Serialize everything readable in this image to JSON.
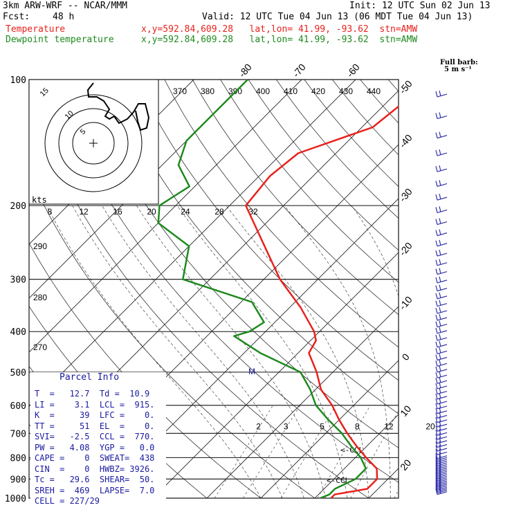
{
  "header": {
    "model": "3km ARW-WRF -- NCAR/MMM",
    "init": "Init: 12 UTC Sun 02 Jun 13",
    "fcst_label": "Fcst:",
    "fcst_value": "48 h",
    "valid": "Valid: 12 UTC Tue 04 Jun 13 (06 MDT Tue 04 Jun 13)",
    "line1_name": "Temperature",
    "line1_info": "x,y=592.84,609.28   lat,lon= 41.99, -93.62  stn=AMW",
    "line2_name": "Dewpoint temperature",
    "line2_info": "x,y=592.84,609.28   lat,lon= 41.99, -93.62  stn=AMW",
    "barb_legend_1": "Full barb:",
    "barb_legend_2": "5 m s⁻¹"
  },
  "colors": {
    "temperature": "#e8211c",
    "dewpoint": "#1e8a1e",
    "parcel": "#1a1aa0",
    "barbs": "#3333aa"
  },
  "chart_data": {
    "type": "line",
    "pressure_levels": [
      "100",
      "200",
      "300",
      "400",
      "500",
      "600",
      "700",
      "800",
      "900",
      "1000"
    ],
    "isotherm_labels": [
      "-80",
      "-70",
      "-60",
      "-50",
      "-40",
      "-30",
      "-20",
      "-10",
      "0",
      "10",
      "20",
      "30",
      "40"
    ],
    "theta_labels": [
      "370",
      "380",
      "390",
      "400",
      "410",
      "420",
      "430",
      "440"
    ],
    "mixing_ratio_labels": [
      "2",
      "3",
      "5",
      "8",
      "12",
      "20"
    ],
    "ccl_labels": [
      "<-CCL",
      "<-CCL"
    ],
    "height_labels": [
      "290",
      "280",
      "270"
    ],
    "marker_m": "M",
    "hodograph": {
      "kts_label": "kts",
      "speed_axis": [
        "8",
        "12",
        "16",
        "20",
        "24",
        "28",
        "32"
      ],
      "ring_labels": [
        "5",
        "10",
        "15"
      ]
    },
    "series": [
      {
        "name": "Temperature",
        "points": [
          [
            1000,
            13
          ],
          [
            980,
            13
          ],
          [
            950,
            18
          ],
          [
            900,
            18
          ],
          [
            850,
            16
          ],
          [
            800,
            12
          ],
          [
            750,
            8
          ],
          [
            700,
            4
          ],
          [
            650,
            0
          ],
          [
            600,
            -4
          ],
          [
            550,
            -9
          ],
          [
            500,
            -13
          ],
          [
            450,
            -18
          ],
          [
            420,
            -19
          ],
          [
            400,
            -21
          ],
          [
            350,
            -28
          ],
          [
            300,
            -37
          ],
          [
            250,
            -46
          ],
          [
            200,
            -57
          ],
          [
            170,
            -58
          ],
          [
            150,
            -57
          ],
          [
            130,
            -48
          ],
          [
            115,
            -47
          ],
          [
            100,
            -49
          ]
        ]
      },
      {
        "name": "Dewpoint temperature",
        "points": [
          [
            1000,
            11
          ],
          [
            980,
            12
          ],
          [
            950,
            12
          ],
          [
            900,
            14
          ],
          [
            850,
            14
          ],
          [
            800,
            11
          ],
          [
            750,
            7
          ],
          [
            700,
            3
          ],
          [
            650,
            -2
          ],
          [
            600,
            -7
          ],
          [
            550,
            -11
          ],
          [
            500,
            -16
          ],
          [
            450,
            -27
          ],
          [
            410,
            -35
          ],
          [
            400,
            -33
          ],
          [
            380,
            -32
          ],
          [
            340,
            -38
          ],
          [
            300,
            -55
          ],
          [
            250,
            -60
          ],
          [
            220,
            -70
          ],
          [
            200,
            -73
          ],
          [
            180,
            -71
          ],
          [
            160,
            -77
          ],
          [
            140,
            -80
          ],
          [
            120,
            -80
          ],
          [
            100,
            -80
          ]
        ]
      }
    ]
  },
  "parcel_info": {
    "title": "Parcel Info",
    "rows": [
      "T  =   12.7  Td =  10.9",
      "LI =    3.1  LCL =  915.",
      "K  =     39  LFC =    0.",
      "TT =     51  EL  =    0.",
      "SVI=   -2.5  CCL =  770.",
      "PW =   4.08  YGP =   0.0",
      "CAPE =    0  SWEAT=  438",
      "CIN  =    0  HWBZ= 3926.",
      "Tc =   29.6  SHEAR=  50.",
      "SREH =  469  LAPSE=  7.0",
      "CELL = 227/29"
    ]
  }
}
